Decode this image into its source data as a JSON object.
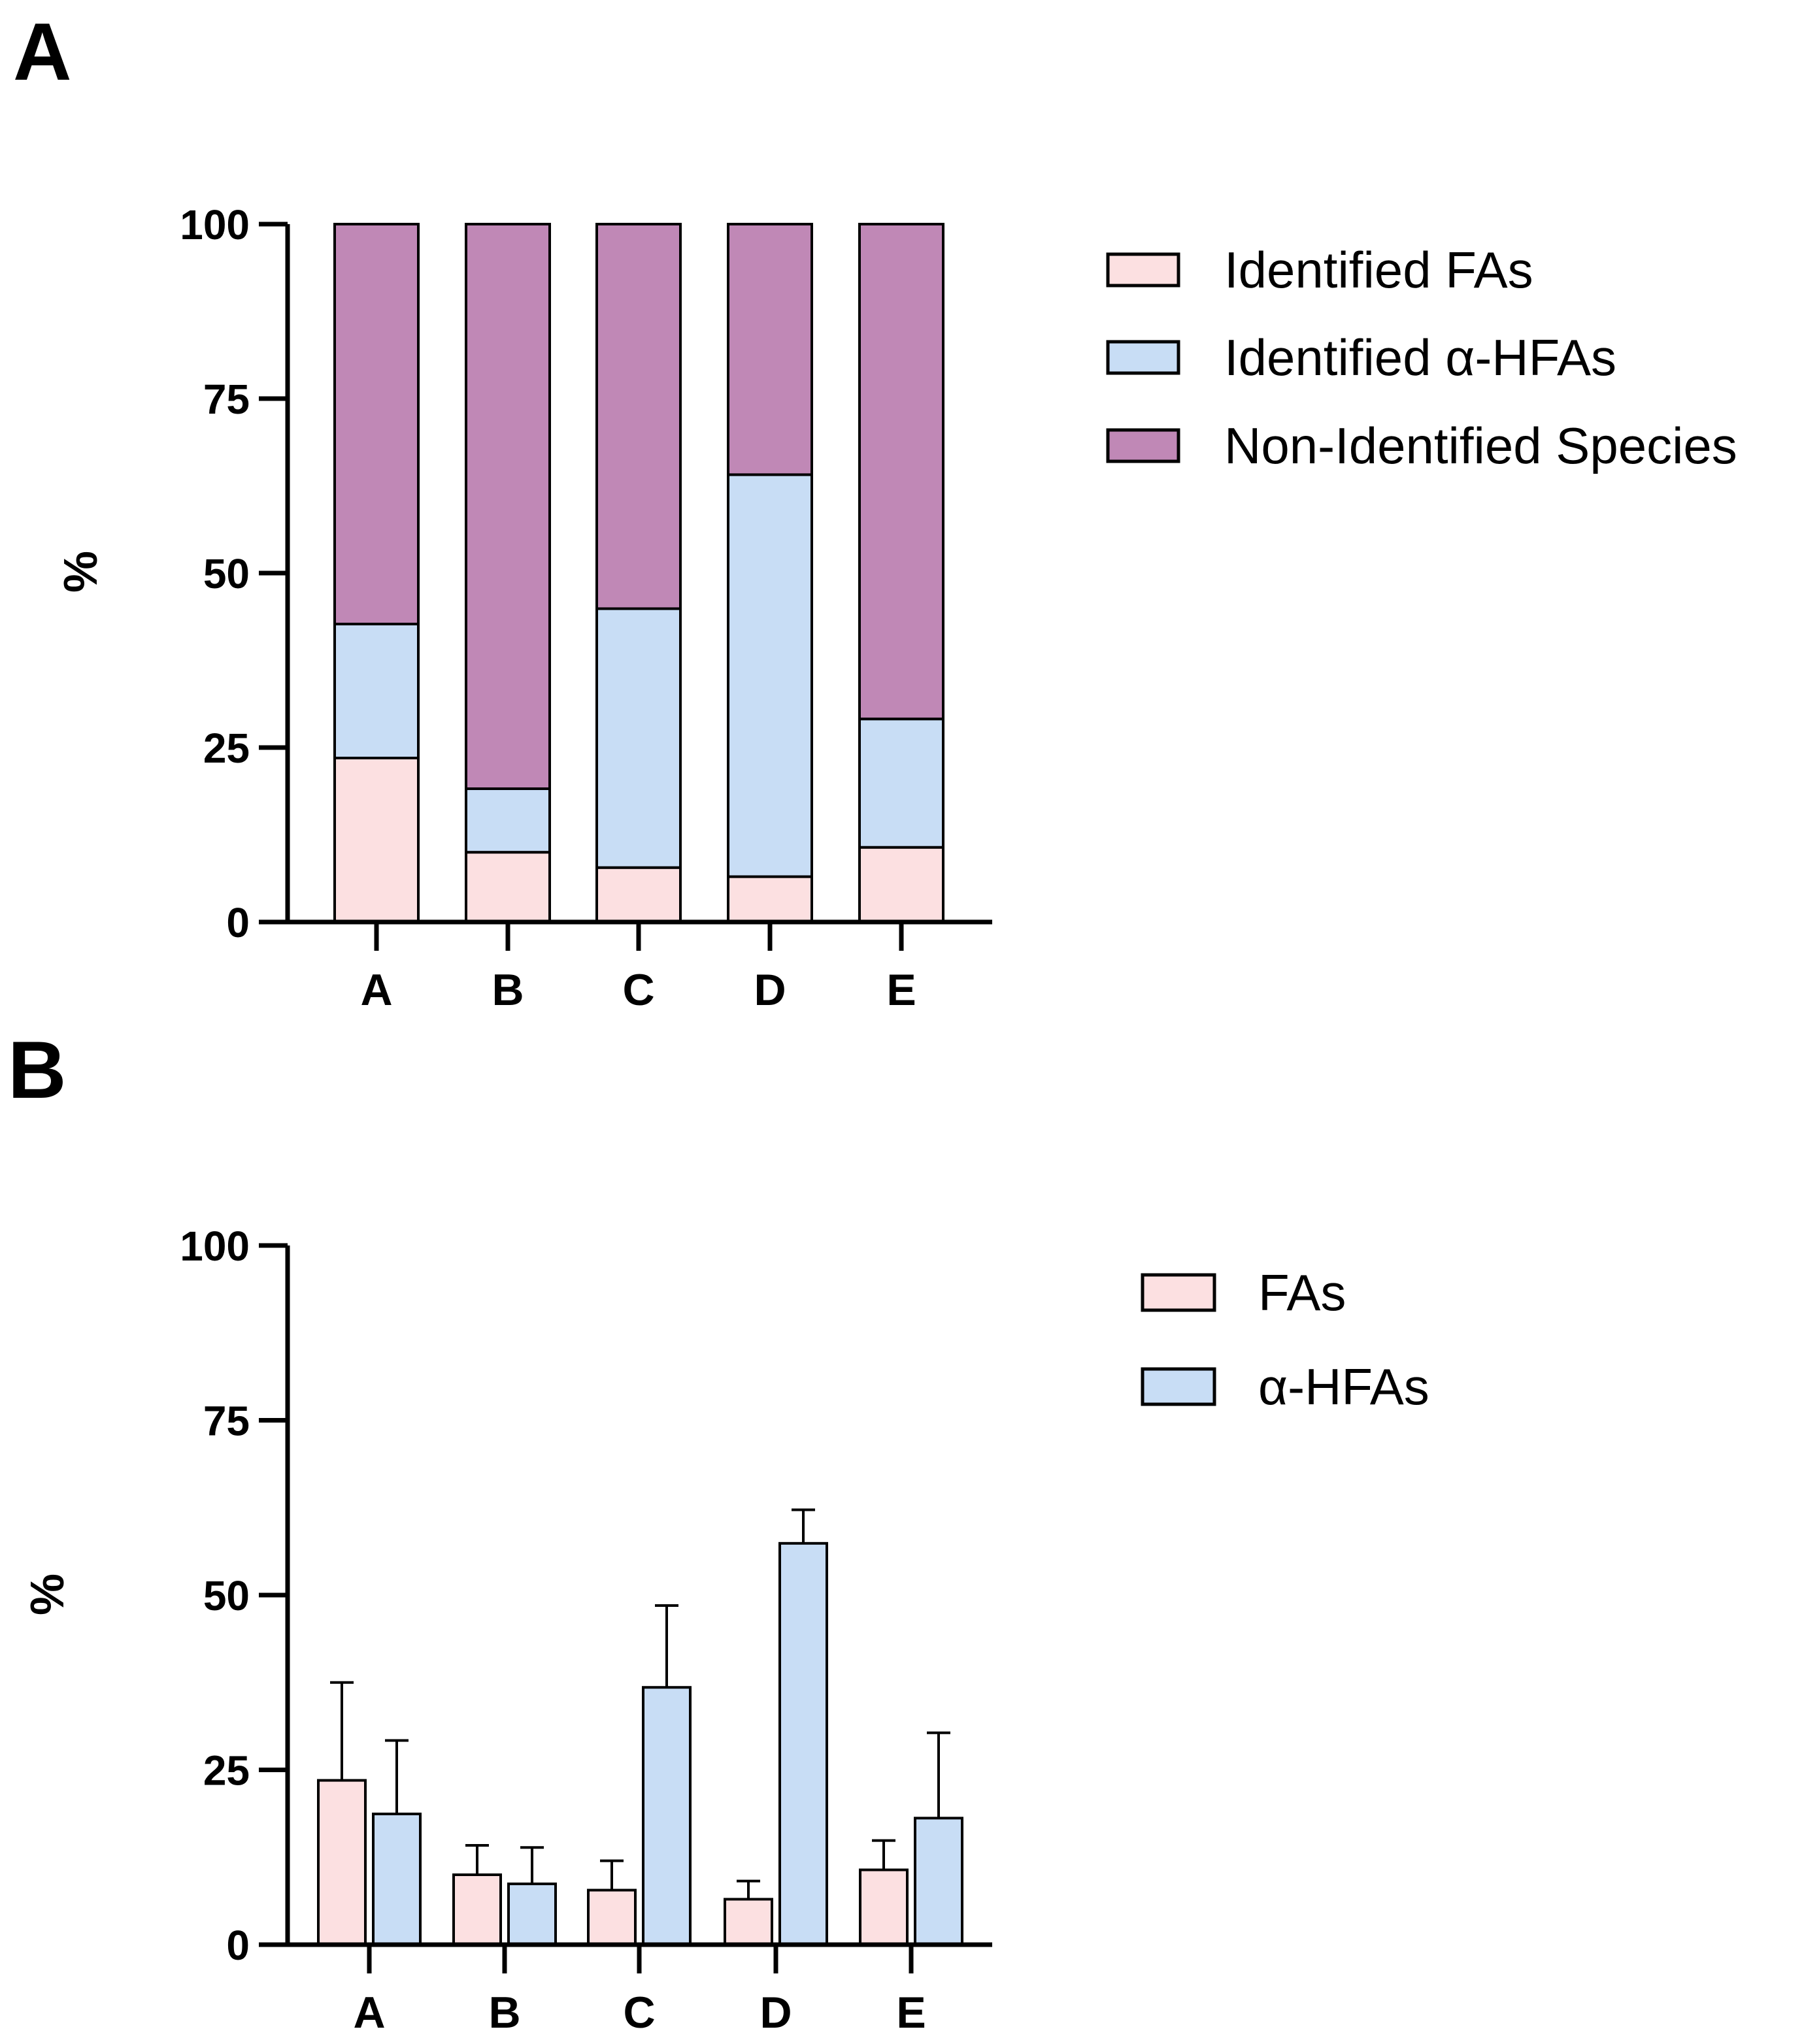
{
  "chart_data": [
    {
      "panel": "A",
      "type": "bar",
      "stacked": true,
      "title": "",
      "xlabel": "",
      "ylabel": "%",
      "ylim": [
        0,
        100
      ],
      "yticks": [
        "0",
        "25",
        "50",
        "75",
        "100"
      ],
      "categories": [
        "A",
        "B",
        "C",
        "D",
        "E"
      ],
      "series": [
        {
          "name": "Identified FAs",
          "color": "#fce0e1",
          "values": [
            23.5,
            10,
            7.8,
            6.5,
            10.7
          ]
        },
        {
          "name": "Identified α-HFAs",
          "color": "#c8ddf5",
          "values": [
            19.2,
            9.1,
            37.1,
            57.6,
            18.4
          ]
        },
        {
          "name": "Non-Identified Species",
          "color": "#c088b6",
          "values": [
            57.3,
            80.9,
            55.1,
            35.9,
            70.9
          ]
        }
      ],
      "legend": "top-right"
    },
    {
      "panel": "B",
      "type": "bar",
      "stacked": false,
      "title": "",
      "xlabel": "",
      "ylabel": "%",
      "ylim": [
        0,
        100
      ],
      "yticks": [
        "0",
        "25",
        "50",
        "75",
        "100"
      ],
      "categories": [
        "A",
        "B",
        "C",
        "D",
        "E"
      ],
      "series": [
        {
          "name": "FAs",
          "color": "#fce0e1",
          "values": [
            23.5,
            10,
            7.8,
            6.5,
            10.7
          ],
          "errors": [
            14,
            4.2,
            4.2,
            2.6,
            4.2
          ]
        },
        {
          "name": "α-HFAs",
          "color": "#c8ddf5",
          "values": [
            18.7,
            8.7,
            36.8,
            57.4,
            18.1
          ],
          "errors": [
            10.5,
            5.2,
            11.7,
            4.8,
            12.2
          ]
        }
      ],
      "legend": "top-right"
    }
  ]
}
